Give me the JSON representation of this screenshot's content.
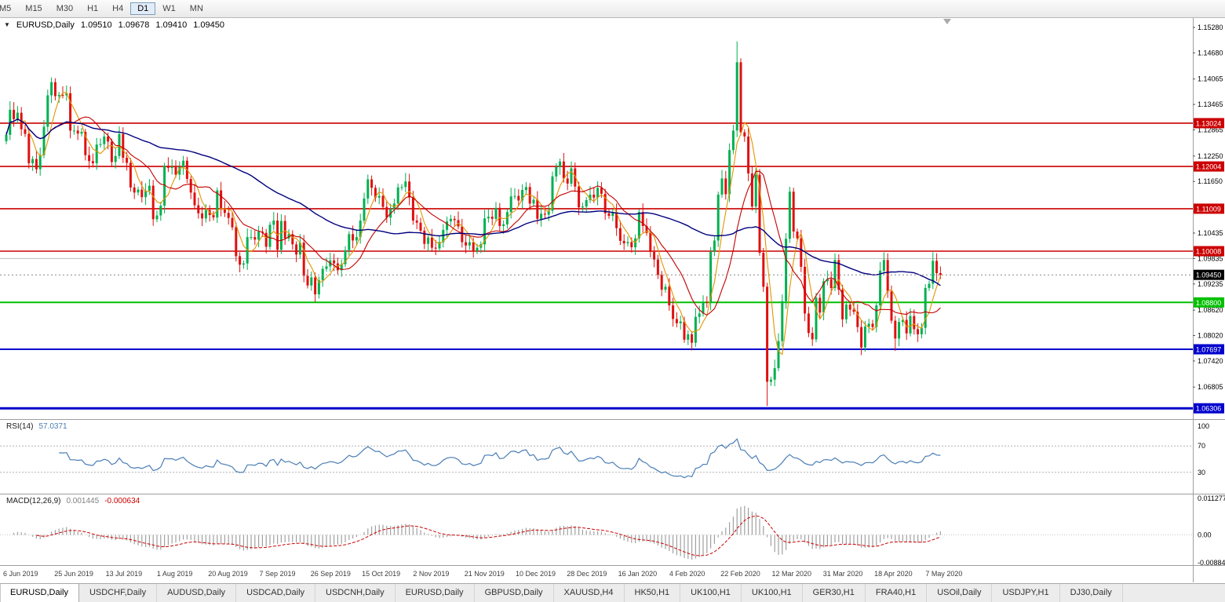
{
  "toolbar": {
    "periods": [
      {
        "label": "M5",
        "active": false
      },
      {
        "label": "M15",
        "active": false
      },
      {
        "label": "M30",
        "active": false
      },
      {
        "label": "H1",
        "active": false
      },
      {
        "label": "H4",
        "active": false
      },
      {
        "label": "D1",
        "active": true
      },
      {
        "label": "W1",
        "active": false
      },
      {
        "label": "MN",
        "active": false
      }
    ]
  },
  "chart": {
    "title": "EURUSD,Daily",
    "ohlc": {
      "open": "1.09510",
      "high": "1.09678",
      "low": "1.09410",
      "close": "1.09450"
    },
    "current_price": {
      "value": 1.0945,
      "label": "1.09450",
      "color": "#000000"
    },
    "price_axis": {
      "ticks": [
        "1.15280",
        "1.14680",
        "1.14065",
        "1.13465",
        "1.12865",
        "1.12250",
        "1.11650",
        "1.10435",
        "1.09835",
        "1.09235",
        "1.08620",
        "1.08020",
        "1.07420",
        "1.06805"
      ]
    },
    "lines": [
      {
        "value": 1.13024,
        "label": "1.13024",
        "color": "#cc0000",
        "width": 1.6
      },
      {
        "value": 1.12004,
        "label": "1.12004",
        "color": "#cc0000",
        "width": 1.6
      },
      {
        "value": 1.11009,
        "label": "1.11009",
        "color": "#cc0000",
        "width": 1.6
      },
      {
        "value": 1.10008,
        "label": "1.10008",
        "color": "#cc0000",
        "width": 1.6
      },
      {
        "value": 1.09835,
        "label": "",
        "color": "#bdbdbd",
        "width": 1
      },
      {
        "value": 1.088,
        "label": "1.08800",
        "color": "#00c000",
        "width": 2
      },
      {
        "value": 1.07697,
        "label": "1.07697",
        "color": "#0000cc",
        "width": 2
      },
      {
        "value": 1.06306,
        "label": "1.06306",
        "color": "#0000cc",
        "width": 3
      }
    ]
  },
  "chart_data": {
    "type": "candlestick",
    "symbol": "EURUSD",
    "timeframe": "Daily",
    "up_color": "#00b050",
    "down_color": "#e01010",
    "price_range": [
      1.0605,
      1.1552
    ],
    "x_labels": [
      "6 Jun 2019",
      "25 Jun 2019",
      "13 Jul 2019",
      "1 Aug 2019",
      "20 Aug 2019",
      "7 Sep 2019",
      "26 Sep 2019",
      "15 Oct 2019",
      "2 Nov 2019",
      "21 Nov 2019",
      "10 Dec 2019",
      "28 Dec 2019",
      "16 Jan 2020",
      "4 Feb 2020",
      "22 Feb 2020",
      "12 Mar 2020",
      "31 Mar 2020",
      "18 Apr 2020",
      "7 May 2020"
    ],
    "closes": [
      1.1275,
      1.1334,
      1.1312,
      1.1327,
      1.1288,
      1.1277,
      1.1208,
      1.1218,
      1.1194,
      1.1227,
      1.1294,
      1.1368,
      1.1399,
      1.1366,
      1.1369,
      1.1368,
      1.1373,
      1.1285,
      1.1285,
      1.1278,
      1.1282,
      1.1227,
      1.1213,
      1.1208,
      1.1252,
      1.1253,
      1.1271,
      1.1259,
      1.1211,
      1.1225,
      1.1277,
      1.1221,
      1.1209,
      1.1151,
      1.1139,
      1.1146,
      1.1128,
      1.1143,
      1.1155,
      1.1076,
      1.1085,
      1.1108,
      1.1202,
      1.1197,
      1.1199,
      1.1181,
      1.1199,
      1.1214,
      1.1171,
      1.1139,
      1.1109,
      1.109,
      1.1078,
      1.1098,
      1.1086,
      1.108,
      1.1144,
      1.1101,
      1.1091,
      1.1079,
      1.1057,
      1.0989,
      1.0969,
      1.0972,
      1.1034,
      1.1034,
      1.1028,
      1.1047,
      1.1044,
      1.1011,
      1.1063,
      1.1073,
      1.1004,
      1.1072,
      1.1031,
      1.1041,
      1.1017,
      1.0993,
      1.1021,
      1.0943,
      1.092,
      1.0939,
      1.0899,
      1.0932,
      1.0959,
      1.0965,
      1.0979,
      1.0972,
      1.0956,
      1.097,
      1.1003,
      1.1041,
      1.1026,
      1.1034,
      1.1073,
      1.1125,
      1.117,
      1.115,
      1.1127,
      1.1131,
      1.1105,
      1.108,
      1.1099,
      1.1113,
      1.1151,
      1.1152,
      1.1165,
      1.1127,
      1.1073,
      1.1068,
      1.1049,
      1.1018,
      1.1033,
      1.1009,
      1.1007,
      1.1022,
      1.1051,
      1.1071,
      1.1077,
      1.1074,
      1.1059,
      1.1022,
      1.1014,
      1.1022,
      1.1001,
      1.1009,
      1.1017,
      1.1078,
      1.1082,
      1.1077,
      1.1103,
      1.106,
      1.1064,
      1.1093,
      1.113,
      1.1131,
      1.112,
      1.1145,
      1.1152,
      1.1113,
      1.1122,
      1.1077,
      1.1089,
      1.1087,
      1.1096,
      1.1177,
      1.1199,
      1.1212,
      1.1172,
      1.116,
      1.1196,
      1.1153,
      1.1104,
      1.1106,
      1.1121,
      1.1134,
      1.1127,
      1.115,
      1.1136,
      1.109,
      1.1084,
      1.1093,
      1.1055,
      1.1025,
      1.1019,
      1.1022,
      1.101,
      1.1031,
      1.1093,
      1.106,
      1.1044,
      1.0999,
      1.0981,
      1.0945,
      1.091,
      1.0917,
      1.0873,
      1.0841,
      1.0831,
      1.0835,
      1.0792,
      1.0805,
      1.0785,
      1.0846,
      1.0854,
      1.0881,
      1.088,
      1.0999,
      1.1026,
      1.1134,
      1.1172,
      1.1135,
      1.1239,
      1.1285,
      1.1446,
      1.1281,
      1.1271,
      1.1184,
      1.1106,
      1.1181,
      1.0997,
      1.0917,
      1.0693,
      1.0698,
      1.0725,
      1.0789,
      1.0883,
      1.103,
      1.1141,
      1.1047,
      1.1031,
      1.0964,
      1.0854,
      1.0808,
      1.0793,
      1.0891,
      1.0856,
      1.093,
      1.0935,
      1.0914,
      1.098,
      1.091,
      1.084,
      1.0875,
      1.0863,
      1.0858,
      1.0822,
      1.0774,
      1.0823,
      1.083,
      1.0822,
      1.0873,
      1.0955,
      1.098,
      1.0906,
      1.0837,
      1.0795,
      1.0834,
      1.0839,
      1.0807,
      1.0848,
      1.0817,
      1.0805,
      1.082,
      1.0914,
      1.0924,
      1.0978,
      1.0949,
      1.0945
    ],
    "wick_overrides": {
      "194": {
        "h": 1.1495
      },
      "202": {
        "l": 1.0636
      },
      "236": {
        "l": 1.0766
      }
    },
    "moving_averages": [
      {
        "period": 5,
        "color": "#e09500"
      },
      {
        "period": 13,
        "color": "#c40000"
      },
      {
        "period": 55,
        "color": "#00007f"
      }
    ]
  },
  "rsi": {
    "name": "RSI(14)",
    "value": "57.0371",
    "period": 14,
    "levels": [
      "100",
      "70",
      "30"
    ],
    "color": "#4a7eb5"
  },
  "macd": {
    "name": "MACD(12,26,9)",
    "main_value": "0.001445",
    "signal_value": "-0.000634",
    "fast": 12,
    "slow": 26,
    "signal": 9,
    "axis": [
      "0.011277",
      "0.00",
      "-0.0088454"
    ],
    "range": [
      -0.0088454,
      0.011277
    ],
    "hist_color": "#a0a0a0",
    "signal_color": "#cc0000"
  },
  "tabs": [
    {
      "label": "EURUSD,Daily",
      "active": true
    },
    {
      "label": "USDCHF,Daily",
      "active": false
    },
    {
      "label": "AUDUSD,Daily",
      "active": false
    },
    {
      "label": "USDCAD,Daily",
      "active": false
    },
    {
      "label": "USDCNH,Daily",
      "active": false
    },
    {
      "label": "EURUSD,Daily",
      "active": false
    },
    {
      "label": "GBPUSD,Daily",
      "active": false
    },
    {
      "label": "XAUUSD,H4",
      "active": false
    },
    {
      "label": "HK50,H1",
      "active": false
    },
    {
      "label": "UK100,H1",
      "active": false
    },
    {
      "label": "UK100,H1",
      "active": false
    },
    {
      "label": "GER30,H1",
      "active": false
    },
    {
      "label": "FRA40,H1",
      "active": false
    },
    {
      "label": "USOil,Daily",
      "active": false
    },
    {
      "label": "USDJPY,H1",
      "active": false
    },
    {
      "label": "DJ30,Daily",
      "active": false
    }
  ]
}
